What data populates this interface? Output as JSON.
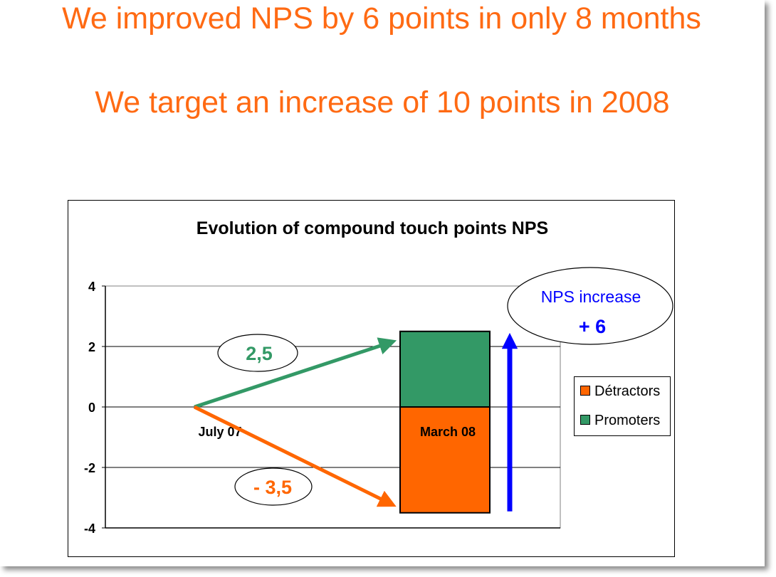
{
  "slide": {
    "headline": "We  improved NPS by 6 points in only 8 months",
    "subheadline": "We target an increase of 10 points in 2008",
    "accent_color": "#ff6a13"
  },
  "chart_data": {
    "type": "bar",
    "title": "Evolution of compound touch points NPS",
    "categories": [
      "July 07",
      "March 08"
    ],
    "series": [
      {
        "name": "Détractors",
        "values": [
          0,
          -3.5
        ],
        "color": "#ff6600"
      },
      {
        "name": "Promoters",
        "values": [
          0,
          2.5
        ],
        "color": "#339966"
      }
    ],
    "yticks": [
      "4",
      "2",
      "0",
      "-2",
      "-4"
    ],
    "ylim": [
      -4,
      4
    ],
    "grid": true,
    "legend_position": "right",
    "annotations": {
      "promoter_change": "2,5",
      "detractor_change": "- 3,5",
      "nps_increase_label": "NPS increase",
      "nps_increase_value": "+ 6"
    },
    "annotation_colors": {
      "promoter": "#339966",
      "detractor": "#ff6600",
      "increase": "#0000ff"
    }
  }
}
